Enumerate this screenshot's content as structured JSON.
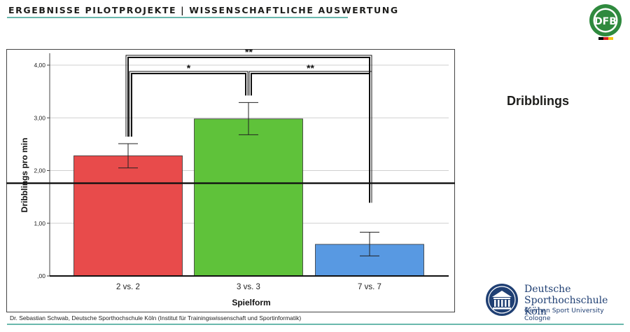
{
  "header": {
    "title": "ERGEBNISSE PILOTPROJEKTE | WISSENSCHAFTLICHE AUSWERTUNG"
  },
  "section_title": "Dribblings",
  "footer": {
    "credit": "Dr. Sebastian Schwab, Deutsche Sporthochschule Köln (Institut für Trainingswissenschaft und Sportinformatik)"
  },
  "logos": {
    "dfb": {
      "text": "DFB"
    },
    "dshs": {
      "line1": "Deutsche",
      "line2": "Sporthochschule Köln",
      "line3": "German Sport University Cologne"
    }
  },
  "colors": {
    "accent": "#6ab8ad",
    "bar_red": "#e84b4b",
    "bar_green": "#5fc23a",
    "bar_blue": "#5899e2",
    "dshs_blue": "#1f3f73"
  },
  "chart_data": {
    "type": "bar",
    "categories": [
      "2 vs. 2",
      "3 vs. 3",
      "7 vs. 7"
    ],
    "values": [
      2.28,
      2.98,
      0.6
    ],
    "error_low": [
      2.05,
      2.68,
      0.38
    ],
    "error_high": [
      2.51,
      3.29,
      0.83
    ],
    "colors": [
      "#e84b4b",
      "#5fc23a",
      "#5899e2"
    ],
    "xlabel": "Spielform",
    "ylabel": "Dribblings pro min",
    "ylim": [
      0,
      4.4
    ],
    "yticks": [
      0,
      1,
      2,
      3,
      4
    ],
    "ytick_labels": [
      ",00",
      "1,00",
      "2,00",
      "3,00",
      "4,00"
    ],
    "reference_line": 1.76,
    "grid": true,
    "significance": [
      {
        "from": 0,
        "to": 2,
        "label": "**"
      },
      {
        "from": 0,
        "to": 1,
        "label": "*"
      },
      {
        "from": 1,
        "to": 2,
        "label": "**"
      }
    ]
  }
}
